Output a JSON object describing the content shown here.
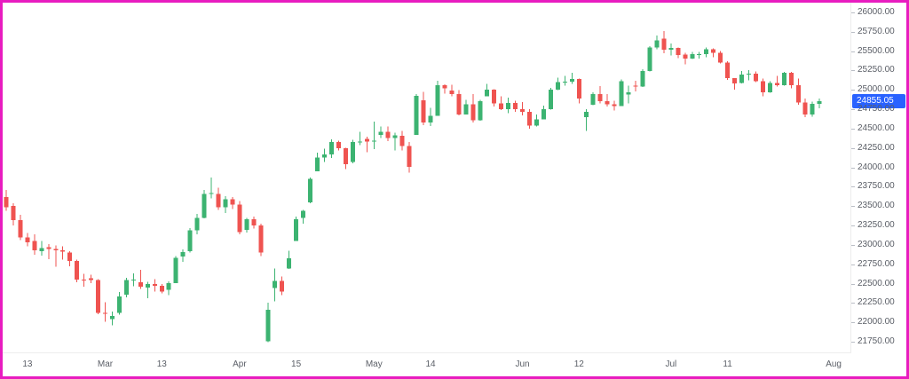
{
  "page": {
    "border_color": "#e81cc0",
    "background": "#ffffff",
    "axis_text_color": "#5a5e66"
  },
  "chart_data": {
    "type": "candlestick",
    "title": "",
    "last_price": "24855.05",
    "up_color": "#3cb371",
    "down_color": "#ef5350",
    "price_label_bg": "#2962ff",
    "legend_position": "none",
    "grid": false,
    "slots_total": 120,
    "y_axis": {
      "min": 21750,
      "max": 26000,
      "step": 250,
      "labels": [
        "26000.00",
        "25750.00",
        "25500.00",
        "25250.00",
        "25000.00",
        "24750.00",
        "24500.00",
        "24250.00",
        "24000.00",
        "23750.00",
        "23500.00",
        "23250.00",
        "23000.00",
        "22750.00",
        "22500.00",
        "22250.00",
        "22000.00",
        "21750.00"
      ]
    },
    "x_axis": {
      "ticks": [
        {
          "label": "13",
          "index": 3
        },
        {
          "label": "Mar",
          "index": 14
        },
        {
          "label": "13",
          "index": 22
        },
        {
          "label": "Apr",
          "index": 33
        },
        {
          "label": "15",
          "index": 41
        },
        {
          "label": "May",
          "index": 52
        },
        {
          "label": "14",
          "index": 60
        },
        {
          "label": "Jun",
          "index": 73
        },
        {
          "label": "12",
          "index": 81
        },
        {
          "label": "Jul",
          "index": 94
        },
        {
          "label": "11",
          "index": 102
        },
        {
          "label": "Aug",
          "index": 117
        }
      ]
    },
    "candles_format": [
      "open",
      "high",
      "low",
      "close"
    ],
    "candles": [
      [
        23620,
        23710,
        23440,
        23485
      ],
      [
        23500,
        23535,
        23250,
        23320
      ],
      [
        23320,
        23390,
        23060,
        23095
      ],
      [
        23095,
        23155,
        22980,
        23031
      ],
      [
        23050,
        23135,
        22875,
        22929
      ],
      [
        22920,
        23050,
        22860,
        22959
      ],
      [
        22970,
        23010,
        22815,
        22945
      ],
      [
        22945,
        22995,
        22720,
        22932
      ],
      [
        22930,
        22980,
        22812,
        22913
      ],
      [
        22900,
        22921,
        22725,
        22795
      ],
      [
        22790,
        22810,
        22518,
        22553
      ],
      [
        22553,
        22625,
        22460,
        22547
      ],
      [
        22570,
        22613,
        22508,
        22545
      ],
      [
        22545,
        22558,
        22105,
        22125
      ],
      [
        22120,
        22261,
        22005,
        22119
      ],
      [
        22040,
        22140,
        21964,
        22082
      ],
      [
        22122,
        22394,
        22100,
        22337
      ],
      [
        22360,
        22577,
        22320,
        22544
      ],
      [
        22544,
        22633,
        22464,
        22552
      ],
      [
        22520,
        22676,
        22430,
        22460
      ],
      [
        22450,
        22522,
        22314,
        22497
      ],
      [
        22497,
        22558,
        22400,
        22470
      ],
      [
        22470,
        22495,
        22377,
        22397
      ],
      [
        22420,
        22529,
        22353,
        22508
      ],
      [
        22508,
        22857,
        22505,
        22834
      ],
      [
        22850,
        22941,
        22780,
        22907
      ],
      [
        22920,
        23217,
        22900,
        23190
      ],
      [
        23190,
        23402,
        23135,
        23350
      ],
      [
        23350,
        23708,
        23345,
        23658
      ],
      [
        23658,
        23869,
        23601,
        23668
      ],
      [
        23660,
        23736,
        23451,
        23486
      ],
      [
        23486,
        23627,
        23412,
        23591
      ],
      [
        23591,
        23615,
        23464,
        23519
      ],
      [
        23520,
        23565,
        23136,
        23165
      ],
      [
        23192,
        23350,
        23158,
        23332
      ],
      [
        23332,
        23365,
        23208,
        23250
      ],
      [
        23250,
        23271,
        22857,
        22904
      ],
      [
        21758,
        22254,
        21743,
        22161
      ],
      [
        22446,
        22697,
        22270,
        22536
      ],
      [
        22536,
        22590,
        22353,
        22399
      ],
      [
        22695,
        22924,
        22690,
        22828
      ],
      [
        23050,
        23368,
        23048,
        23328
      ],
      [
        23345,
        23452,
        23273,
        23437
      ],
      [
        23550,
        23872,
        23537,
        23852
      ],
      [
        23950,
        24189,
        23948,
        24125
      ],
      [
        24125,
        24243,
        24072,
        24167
      ],
      [
        24167,
        24359,
        24120,
        24329
      ],
      [
        24329,
        24347,
        24217,
        24247
      ],
      [
        24247,
        24251,
        23978,
        24039
      ],
      [
        24070,
        24355,
        24055,
        24328
      ],
      [
        24328,
        24457,
        24290,
        24336
      ],
      [
        24370,
        24396,
        24198,
        24334
      ],
      [
        24334,
        24589,
        24238,
        24347
      ],
      [
        24420,
        24526,
        24378,
        24461
      ],
      [
        24461,
        24526,
        24340,
        24379
      ],
      [
        24379,
        24449,
        24220,
        24414
      ],
      [
        24410,
        24470,
        24221,
        24274
      ],
      [
        24274,
        24329,
        23935,
        24008
      ],
      [
        24420,
        24945,
        24418,
        24925
      ],
      [
        24864,
        24974,
        24547,
        24578
      ],
      [
        24578,
        24767,
        24535,
        24667
      ],
      [
        24667,
        25117,
        24665,
        25062
      ],
      [
        25062,
        25070,
        24953,
        25019
      ],
      [
        24990,
        25064,
        24917,
        24945
      ],
      [
        24945,
        24996,
        24669,
        24683
      ],
      [
        24683,
        24874,
        24680,
        24813
      ],
      [
        24813,
        24946,
        24578,
        24609
      ],
      [
        24609,
        24869,
        24605,
        24853
      ],
      [
        24919,
        25079,
        24915,
        25001
      ],
      [
        25001,
        25010,
        24785,
        24826
      ],
      [
        24826,
        24920,
        24738,
        24752
      ],
      [
        24752,
        24899,
        24700,
        24833
      ],
      [
        24833,
        24863,
        24717,
        24750
      ],
      [
        24750,
        24845,
        24670,
        24716
      ],
      [
        24716,
        24754,
        24502,
        24542
      ],
      [
        24542,
        24680,
        24526,
        24620
      ],
      [
        24620,
        24799,
        24618,
        24750
      ],
      [
        24750,
        25029,
        24748,
        25003
      ],
      [
        25003,
        25160,
        25000,
        25103
      ],
      [
        25103,
        25182,
        25053,
        25104
      ],
      [
        25104,
        25222,
        25078,
        25141
      ],
      [
        25141,
        25146,
        24825,
        24888
      ],
      [
        24650,
        24754,
        24473,
        24718
      ],
      [
        24807,
        24967,
        24805,
        24946
      ],
      [
        24946,
        25050,
        24824,
        24853
      ],
      [
        24853,
        24947,
        24783,
        24812
      ],
      [
        24812,
        24863,
        24733,
        24793
      ],
      [
        24793,
        25136,
        24790,
        25112
      ],
      [
        24939,
        25057,
        24824,
        24971
      ],
      [
        25056,
        25116,
        24981,
        25044
      ],
      [
        25044,
        25266,
        25040,
        25244
      ],
      [
        25244,
        25565,
        25240,
        25549
      ],
      [
        25549,
        25700,
        25523,
        25638
      ],
      [
        25661,
        25758,
        25473,
        25517
      ],
      [
        25517,
        25600,
        25443,
        25541
      ],
      [
        25541,
        25548,
        25408,
        25453
      ],
      [
        25453,
        25478,
        25331,
        25405
      ],
      [
        25405,
        25491,
        25400,
        25461
      ],
      [
        25450,
        25489,
        25407,
        25461
      ],
      [
        25461,
        25548,
        25424,
        25522
      ],
      [
        25522,
        25534,
        25424,
        25476
      ],
      [
        25476,
        25500,
        25340,
        25355
      ],
      [
        25355,
        25368,
        25129,
        25150
      ],
      [
        25150,
        25151,
        25001,
        25082
      ],
      [
        25089,
        25245,
        25086,
        25196
      ],
      [
        25196,
        25255,
        25121,
        25212
      ],
      [
        25212,
        25238,
        25101,
        25111
      ],
      [
        25111,
        25144,
        24919,
        24968
      ],
      [
        24968,
        25112,
        24965,
        25090
      ],
      [
        25090,
        25182,
        25042,
        25060
      ],
      [
        25060,
        25233,
        25056,
        25219
      ],
      [
        25219,
        25234,
        25018,
        25062
      ],
      [
        25062,
        25144,
        24806,
        24837
      ],
      [
        24837,
        24889,
        24646,
        24680
      ],
      [
        24680,
        24848,
        24655,
        24821
      ],
      [
        24821,
        24888,
        24761,
        24855.05
      ]
    ]
  }
}
